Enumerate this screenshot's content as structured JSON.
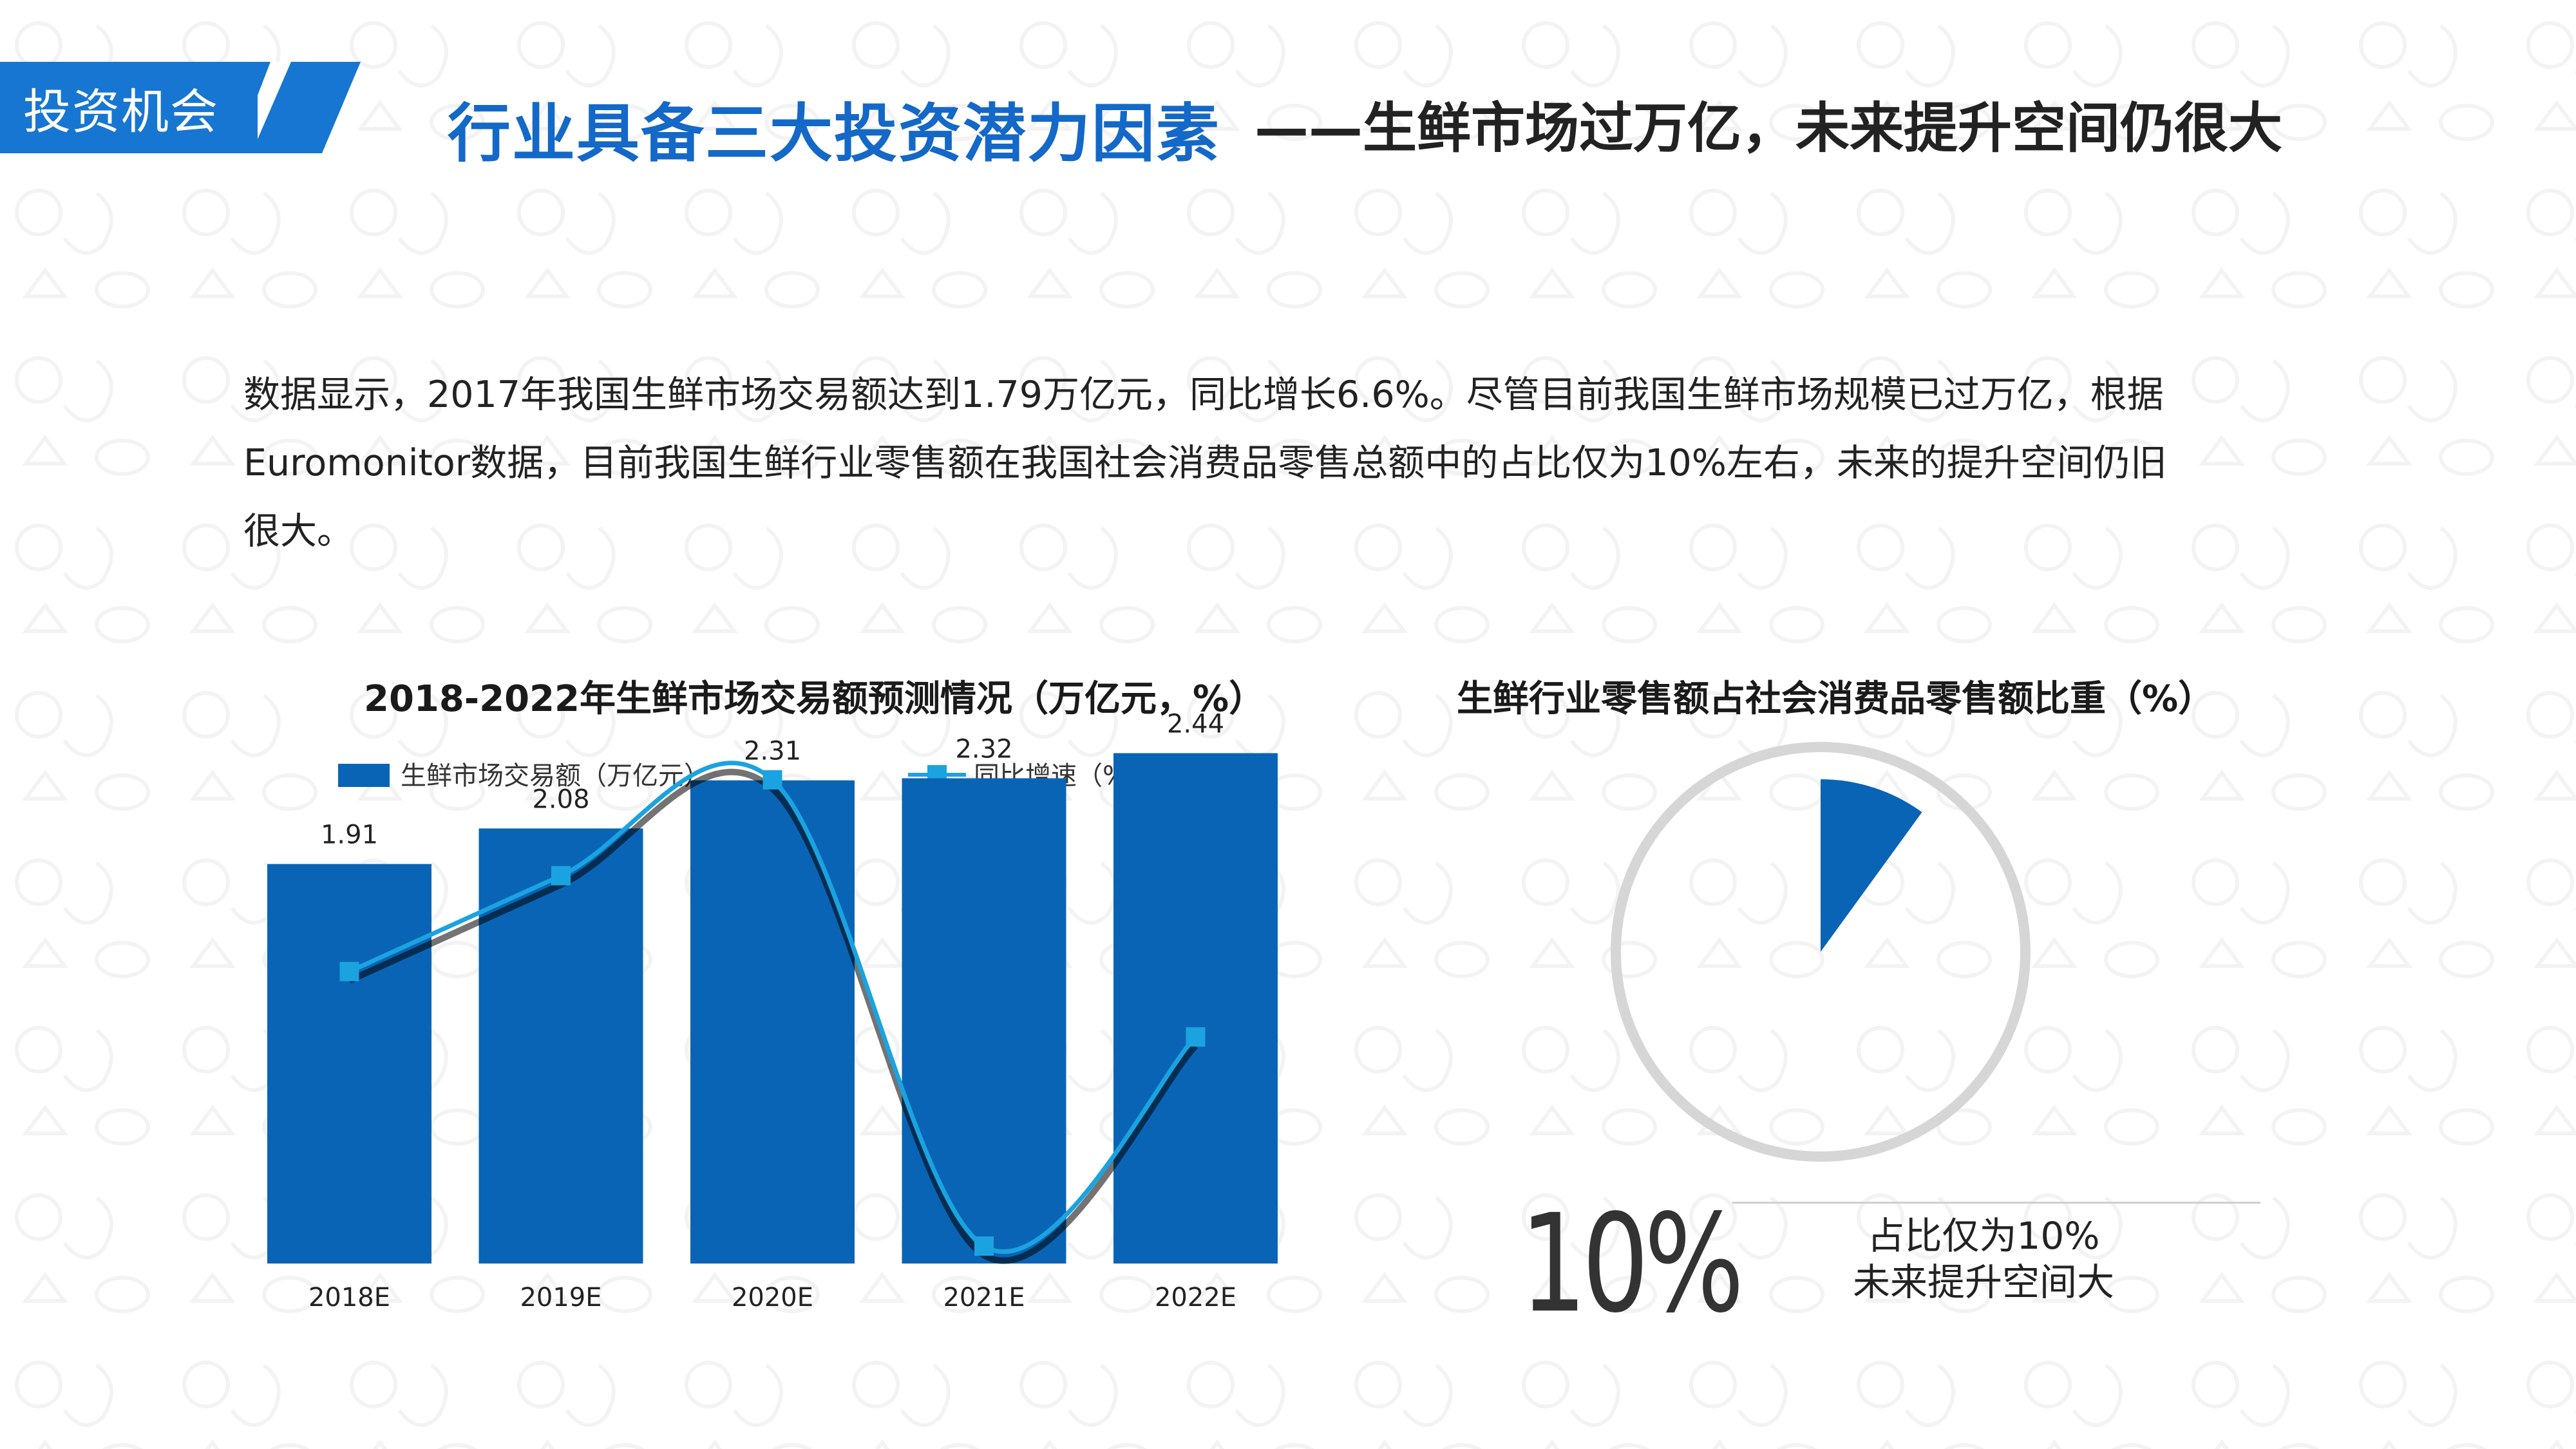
{
  "header": {
    "tag_label": "投资机会",
    "title_main": "行业具备三大投资潜力因素",
    "title_sub": "——生鲜市场过万亿，未来提升空间仍很大"
  },
  "description": {
    "line1": "数据显示，2017年我国生鲜市场交易额达到1.79万亿元，同比增长6.6%。尽管目前我国生鲜市场规模已过万亿，根据",
    "line2": "Euromonitor数据，目前我国生鲜行业零售额在我国社会消费品零售总额中的占比仅为10%左右，未来的提升空间仍旧",
    "line3": "很大。"
  },
  "colors": {
    "bar": "#0a64b6",
    "line": "#1aa3e0",
    "accent": "#1776d1",
    "ring": "#d6d6d6"
  },
  "chart_data": [
    {
      "type": "bar",
      "title": "2018-2022年生鲜市场交易额预测情况（万亿元，%）",
      "categories": [
        "2018E",
        "2019E",
        "2020E",
        "2021E",
        "2022E"
      ],
      "series": [
        {
          "name": "生鲜市场交易额（万亿元）",
          "type": "bar",
          "values": [
            1.91,
            2.08,
            2.31,
            2.32,
            2.44
          ]
        },
        {
          "name": "同比增速（%）",
          "type": "line",
          "values": [
            6.7,
            8.9,
            11.1,
            0.4,
            5.2
          ]
        }
      ],
      "ylim_bar": [
        0,
        2.5
      ],
      "ylim_line": [
        0,
        12
      ],
      "legend": "top",
      "grid": false
    },
    {
      "type": "pie",
      "title": "生鲜行业零售额占社会消费品零售额比重（%）",
      "labels": [
        "生鲜行业零售额"
      ],
      "values": [
        10
      ],
      "center_label": "10%",
      "note_line1": "占比仅为10%",
      "note_line2": "未来提升空间大"
    }
  ]
}
